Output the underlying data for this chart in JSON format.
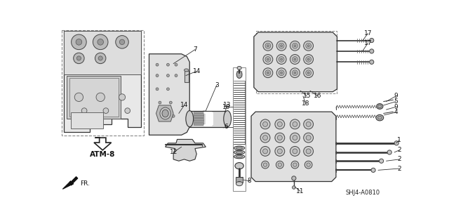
{
  "background_color": "#ffffff",
  "line_color": "#222222",
  "atm_label": "ATM-8",
  "fr_label": "FR.",
  "ref_code": "SHJ4-A0810",
  "fig_width": 6.4,
  "fig_height": 3.19,
  "dpi": 100
}
